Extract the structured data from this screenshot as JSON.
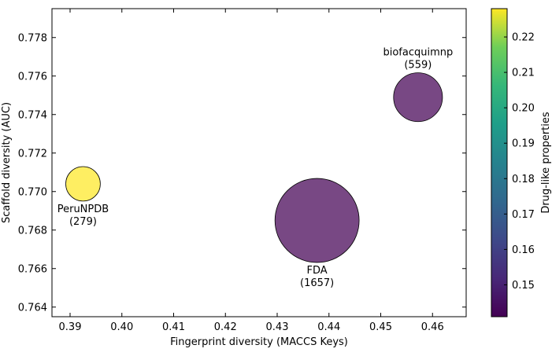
{
  "chart_data": {
    "type": "scatter",
    "title": "",
    "xlabel": "Fingerprint diversity (MACCS Keys)",
    "ylabel": "Scaffold diversity (AUC)",
    "xlim": [
      0.3865,
      0.4665
    ],
    "ylim": [
      0.7635,
      0.7795
    ],
    "xticks": [
      0.39,
      0.4,
      0.41,
      0.42,
      0.43,
      0.44,
      0.45,
      0.46
    ],
    "xtick_labels": [
      "0.39",
      "0.40",
      "0.41",
      "0.42",
      "0.43",
      "0.44",
      "0.45",
      "0.46"
    ],
    "yticks": [
      0.764,
      0.766,
      0.768,
      0.77,
      0.772,
      0.774,
      0.776,
      0.778
    ],
    "ytick_labels": [
      "0.764",
      "0.766",
      "0.768",
      "0.770",
      "0.772",
      "0.774",
      "0.776",
      "0.778"
    ],
    "grid": false,
    "colorbar": {
      "label": "Drug-like properties",
      "range": [
        0.141,
        0.228
      ],
      "ticks": [
        0.15,
        0.16,
        0.17,
        0.18,
        0.19,
        0.2,
        0.21,
        0.22
      ],
      "tick_labels": [
        "0.15",
        "0.16",
        "0.17",
        "0.18",
        "0.19",
        "0.20",
        "0.21",
        "0.22"
      ],
      "colormap": "viridis"
    },
    "points": [
      {
        "name": "PeruNPDB",
        "count": 279,
        "x": 0.3925,
        "y": 0.7704,
        "color_value": 0.228,
        "label_lines": [
          "PeruNPDB",
          "(279)"
        ],
        "label_position": "below"
      },
      {
        "name": "FDA",
        "count": 1657,
        "x": 0.4377,
        "y": 0.7685,
        "color_value": 0.141,
        "label_lines": [
          "FDA",
          "(1657)"
        ],
        "label_position": "below"
      },
      {
        "name": "biofacquimnp",
        "count": 559,
        "x": 0.4572,
        "y": 0.7749,
        "color_value": 0.141,
        "label_lines": [
          "biofacquimnp",
          "(559)"
        ],
        "label_position": "above"
      }
    ]
  }
}
